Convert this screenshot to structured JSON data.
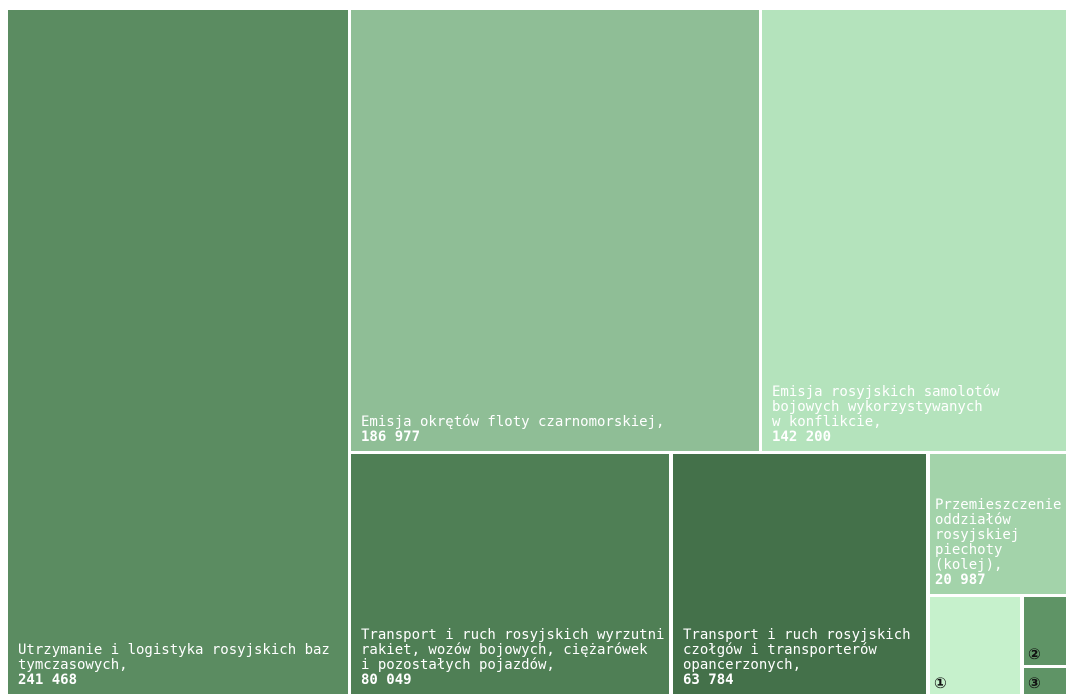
{
  "chart_data": {
    "type": "treemap",
    "title": "",
    "items": [
      {
        "label": "Utrzymanie i logistyka rosyjskich baz\ntymczasowych,",
        "value": 241468,
        "value_text": "241 468",
        "color": "#5b8c61"
      },
      {
        "label": "Emisja okrętów floty czarnomorskiej,",
        "value": 186977,
        "value_text": "186 977",
        "color": "#8fbe96"
      },
      {
        "label": "Emisja rosyjskich samolotów\nbojowych wykorzystywanych\nw konflikcie,",
        "value": 142200,
        "value_text": "142 200",
        "color": "#b4e3bc"
      },
      {
        "label": "Transport i ruch rosyjskich wyrzutni\nrakiet, wozów bojowych, ciężarówek\ni pozostałych pojazdów,",
        "value": 80049,
        "value_text": "80 049",
        "color": "#4f7f55"
      },
      {
        "label": "Transport i ruch rosyjskich\nczołgów i transporterów\nopancerzonych,",
        "value": 63784,
        "value_text": "63 784",
        "color": "#44714a"
      },
      {
        "label": "Przemieszczenie\noddziałów\nrosyjskiej\npiechoty (kolej),",
        "value": 20987,
        "value_text": "20 987",
        "color": "#a3d3aa"
      },
      {
        "marker": "①",
        "color": "#c6f1cc"
      },
      {
        "marker": "②",
        "color": "#5f9466"
      },
      {
        "marker": "③",
        "color": "#5f9466"
      }
    ]
  }
}
